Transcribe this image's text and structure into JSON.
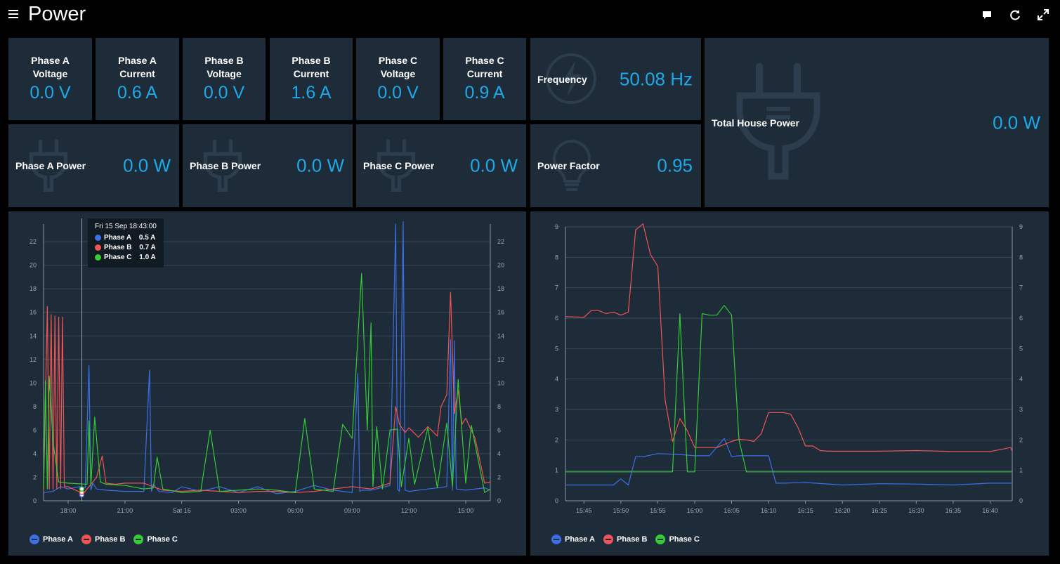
{
  "app": {
    "title": "Power"
  },
  "colors": {
    "accent": "#1ea9e8",
    "tile": "#1e2b38",
    "phase_a": "#3b6fe8",
    "phase_b": "#f25454",
    "phase_c": "#33cc33"
  },
  "tiles": {
    "phase_a_voltage": {
      "label_line1": "Phase A",
      "label_line2": "Voltage",
      "value": "0.0 V"
    },
    "phase_a_current": {
      "label_line1": "Phase A",
      "label_line2": "Current",
      "value": "0.6 A"
    },
    "phase_b_voltage": {
      "label_line1": "Phase B",
      "label_line2": "Voltage",
      "value": "0.0 V"
    },
    "phase_b_current": {
      "label_line1": "Phase B",
      "label_line2": "Current",
      "value": "1.6 A"
    },
    "phase_c_voltage": {
      "label_line1": "Phase C",
      "label_line2": "Voltage",
      "value": "0.0 V"
    },
    "phase_c_current": {
      "label_line1": "Phase C",
      "label_line2": "Current",
      "value": "0.9 A"
    },
    "frequency": {
      "label": "Frequency",
      "value": "50.08 Hz",
      "icon": "lightning-icon"
    },
    "total_house_power": {
      "label": "Total House Power",
      "value": "0.0 W",
      "icon": "plug-icon"
    },
    "phase_a_power": {
      "label": "Phase A Power",
      "value": "0.0 W",
      "icon": "plug-icon"
    },
    "phase_b_power": {
      "label": "Phase B Power",
      "value": "0.0 W",
      "icon": "plug-icon"
    },
    "phase_c_power": {
      "label": "Phase C Power",
      "value": "0.0 W",
      "icon": "plug-icon"
    },
    "power_factor": {
      "label": "Power Factor",
      "value": "0.95",
      "icon": "lightbulb-icon"
    }
  },
  "chart_data": [
    {
      "type": "line",
      "title": "",
      "x_ticks": [
        "18:00",
        "21:00",
        "Sat 16",
        "03:00",
        "06:00",
        "09:00",
        "12:00",
        "15:00"
      ],
      "ylim": [
        0,
        23.5
      ],
      "y_ticks": [
        0,
        2,
        4,
        6,
        8,
        10,
        12,
        14,
        16,
        18,
        20,
        22
      ],
      "xlim_hours": [
        16.7,
        40.3
      ],
      "tooltip": {
        "title": "Fri 15 Sep 18:43:00",
        "rows": [
          {
            "name": "Phase A",
            "value": "0.5 A"
          },
          {
            "name": "Phase B",
            "value": "0.7 A"
          },
          {
            "name": "Phase C",
            "value": "1.0 A"
          }
        ]
      },
      "series": [
        {
          "name": "Phase A",
          "color": "#3b6fe8",
          "x": [
            16.7,
            17.2,
            17.6,
            18.0,
            18.6,
            18.9,
            19.1,
            19.2,
            19.3,
            19.5,
            20.0,
            21.0,
            22.0,
            22.3,
            22.4,
            22.5,
            22.8,
            23.5,
            24.0,
            25.0,
            26.0,
            27.0,
            28.0,
            29.0,
            30.0,
            31.0,
            32.0,
            33.0,
            33.3,
            33.4,
            33.5,
            34.0,
            35.0,
            35.3,
            35.4,
            35.5,
            35.7,
            35.8,
            36.0,
            37.0,
            38.0,
            38.2,
            38.3,
            38.4,
            38.5,
            39.0,
            40.0,
            40.3
          ],
          "y": [
            0.7,
            0.8,
            1.2,
            1.0,
            1.2,
            1.1,
            11.5,
            0.9,
            1.5,
            1.0,
            0.9,
            0.8,
            0.8,
            11.1,
            0.8,
            1.4,
            0.8,
            0.7,
            1.2,
            0.8,
            1.2,
            0.7,
            1.2,
            0.6,
            0.8,
            1.3,
            0.9,
            0.7,
            10.8,
            0.8,
            0.9,
            0.9,
            1.3,
            23.5,
            1.0,
            0.8,
            23.7,
            0.9,
            0.8,
            1.0,
            1.2,
            13.7,
            0.9,
            13.6,
            1.0,
            0.9,
            1.1,
            0.9
          ]
        },
        {
          "name": "Phase B",
          "color": "#f25454",
          "x": [
            16.7,
            16.9,
            17.0,
            17.1,
            17.2,
            17.3,
            17.4,
            17.5,
            17.6,
            17.7,
            17.8,
            18.0,
            18.8,
            19.5,
            19.8,
            20.0,
            20.5,
            21.0,
            22.0,
            22.5,
            23.0,
            24.0,
            25.0,
            26.0,
            27.0,
            28.0,
            29.0,
            30.0,
            31.0,
            32.0,
            33.0,
            34.0,
            35.0,
            35.3,
            35.5,
            35.8,
            36.0,
            36.5,
            37.0,
            37.5,
            37.7,
            38.0,
            38.2,
            38.4,
            38.6,
            38.8,
            39.0,
            39.5,
            40.0,
            40.3
          ],
          "y": [
            0.8,
            16.5,
            1.0,
            15.8,
            1.0,
            15.7,
            1.0,
            15.6,
            1.0,
            15.6,
            1.2,
            1.2,
            0.6,
            2.0,
            3.8,
            1.5,
            1.4,
            1.5,
            1.5,
            1.2,
            0.9,
            0.8,
            0.9,
            0.8,
            0.7,
            0.8,
            0.8,
            0.7,
            0.8,
            1.0,
            1.2,
            1.0,
            1.5,
            8.0,
            6.5,
            5.8,
            6.2,
            5.4,
            6.3,
            5.5,
            8.0,
            9.0,
            17.7,
            7.4,
            9.4,
            6.5,
            7.0,
            5.3,
            1.5,
            1.6
          ]
        },
        {
          "name": "Phase C",
          "color": "#33cc33",
          "x": [
            16.7,
            16.8,
            16.9,
            17.0,
            17.2,
            17.5,
            18.0,
            19.0,
            19.1,
            19.2,
            19.4,
            19.7,
            20.0,
            21.0,
            22.0,
            22.5,
            22.7,
            23.0,
            24.0,
            25.0,
            25.5,
            26.0,
            27.0,
            28.0,
            29.0,
            30.0,
            30.5,
            31.0,
            32.0,
            32.5,
            33.0,
            33.5,
            33.8,
            34.0,
            34.1,
            34.3,
            34.6,
            35.0,
            35.4,
            35.6,
            36.0,
            36.3,
            37.0,
            37.5,
            38.0,
            38.3,
            38.6,
            39.0,
            39.3,
            40.0,
            40.3
          ],
          "y": [
            1.0,
            10.2,
            1.0,
            10.6,
            5.0,
            1.6,
            1.5,
            1.4,
            6.8,
            1.3,
            7.1,
            1.6,
            1.4,
            1.3,
            1.0,
            1.1,
            3.7,
            1.0,
            0.7,
            0.8,
            6.0,
            0.8,
            0.9,
            1.0,
            0.9,
            0.7,
            7.0,
            1.0,
            0.8,
            6.5,
            5.3,
            19.3,
            6.0,
            15.1,
            1.2,
            6.3,
            1.0,
            6.0,
            6.1,
            1.2,
            5.3,
            1.4,
            6.2,
            1.1,
            6.6,
            1.2,
            10.3,
            1.5,
            6.4,
            0.7,
            1.0
          ]
        }
      ]
    },
    {
      "type": "line",
      "title": "",
      "x_ticks": [
        "15:45",
        "15:50",
        "15:55",
        "16:00",
        "16:05",
        "16:10",
        "16:15",
        "16:20",
        "16:25",
        "16:30",
        "16:35",
        "16:40"
      ],
      "ylim": [
        0,
        9
      ],
      "y_ticks": [
        0,
        1,
        2,
        3,
        4,
        5,
        6,
        7,
        8,
        9
      ],
      "xlim_minutes": [
        942.5,
        1003
      ],
      "series": [
        {
          "name": "Phase A",
          "color": "#3b6fe8",
          "x": [
            942.5,
            949,
            950,
            951,
            952,
            953,
            955,
            958,
            960,
            962,
            964,
            965,
            966,
            970,
            971,
            972,
            975,
            980,
            985,
            990,
            995,
            1000,
            1003
          ],
          "y": [
            0.52,
            0.52,
            0.72,
            0.52,
            1.45,
            1.45,
            1.55,
            1.52,
            1.48,
            1.48,
            2.05,
            1.45,
            1.48,
            1.48,
            0.58,
            0.58,
            0.6,
            0.52,
            0.56,
            0.55,
            0.52,
            0.58,
            0.58
          ]
        },
        {
          "name": "Phase B",
          "color": "#f25454",
          "x": [
            942.5,
            945,
            946,
            947,
            948,
            949,
            950,
            951,
            952,
            953,
            954,
            955,
            956,
            957,
            958,
            959,
            960,
            961,
            962,
            963,
            964,
            965,
            966,
            967,
            968,
            969,
            970,
            971,
            972,
            973,
            974,
            975,
            976,
            977,
            978,
            979,
            980,
            985,
            990,
            995,
            1000,
            1002.8,
            1003
          ],
          "y": [
            6.05,
            6.03,
            6.25,
            6.25,
            6.15,
            6.2,
            6.1,
            6.2,
            8.9,
            9.1,
            8.1,
            7.7,
            3.3,
            1.95,
            2.7,
            2.3,
            1.75,
            1.75,
            1.75,
            1.75,
            1.85,
            1.95,
            2.02,
            2.0,
            1.95,
            2.2,
            2.9,
            2.9,
            2.9,
            2.85,
            2.4,
            1.8,
            1.8,
            1.65,
            1.63,
            1.63,
            1.63,
            1.63,
            1.65,
            1.62,
            1.62,
            1.75,
            1.62
          ]
        },
        {
          "name": "Phase C",
          "color": "#33cc33",
          "x": [
            942.5,
            950,
            955,
            956,
            957,
            958,
            959,
            960,
            961,
            962,
            963,
            964,
            965,
            966,
            967,
            968,
            970,
            975,
            980,
            985,
            990,
            995,
            1000,
            1003
          ],
          "y": [
            0.95,
            0.95,
            0.95,
            0.95,
            0.95,
            6.15,
            0.95,
            0.95,
            6.15,
            6.1,
            6.1,
            6.42,
            6.1,
            2.0,
            0.95,
            0.95,
            0.95,
            0.95,
            0.95,
            0.95,
            0.95,
            0.95,
            0.95,
            0.95
          ]
        }
      ]
    }
  ]
}
